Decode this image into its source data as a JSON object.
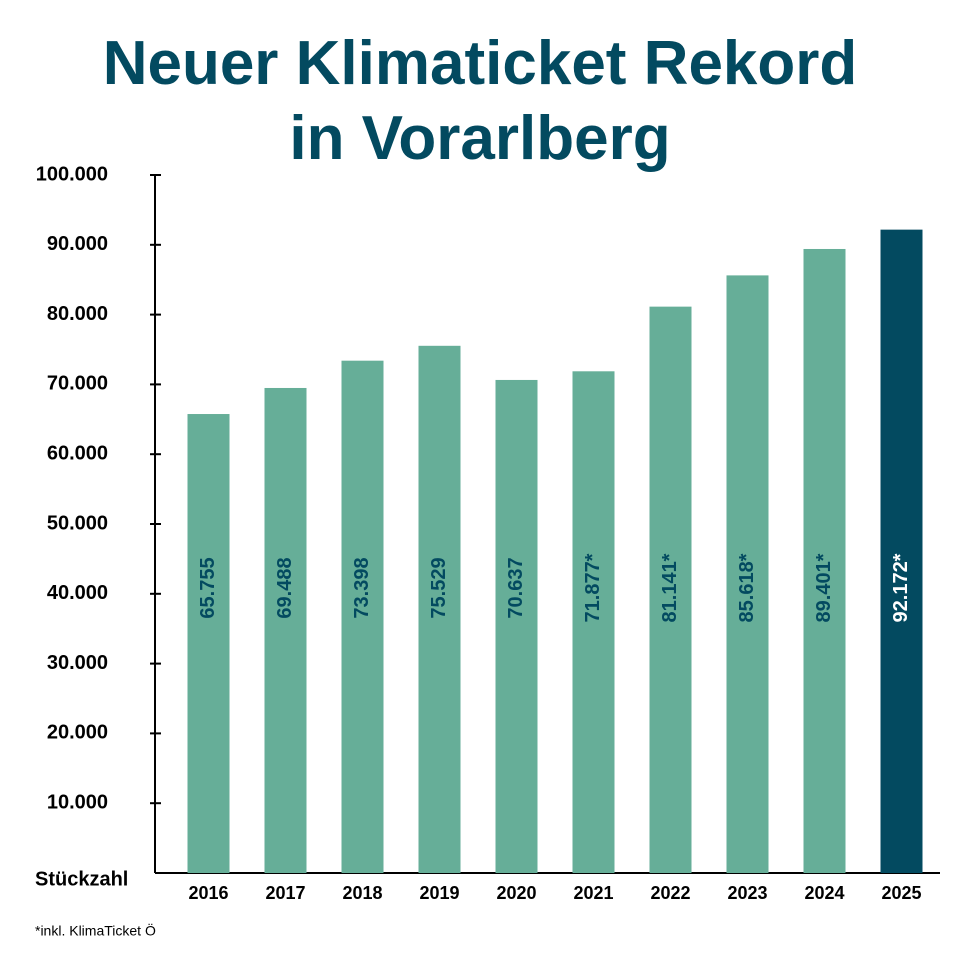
{
  "chart_data": {
    "type": "bar",
    "title": "Neuer Klimaticket Rekord in Vorarlberg",
    "y_label": "Stückzahl",
    "footnote": "*inkl. KlimaTicket Ö",
    "categories": [
      "2016",
      "2017",
      "2018",
      "2019",
      "2020",
      "2021",
      "2022",
      "2023",
      "2024",
      "2025"
    ],
    "values": [
      65755,
      69488,
      73398,
      75529,
      70637,
      71877,
      81141,
      85618,
      89401,
      92172
    ],
    "value_labels": [
      "65.755",
      "69.488",
      "73.398",
      "75.529",
      "70.637",
      "71.877*",
      "81.141*",
      "85.618*",
      "89.401*",
      "92.172*"
    ],
    "colors": [
      "#66ae98",
      "#66ae98",
      "#66ae98",
      "#66ae98",
      "#66ae98",
      "#66ae98",
      "#66ae98",
      "#66ae98",
      "#66ae98",
      "#034a60"
    ],
    "value_label_colors": [
      "#034a60",
      "#034a60",
      "#034a60",
      "#034a60",
      "#034a60",
      "#034a60",
      "#034a60",
      "#034a60",
      "#034a60",
      "#ffffff"
    ],
    "ylim": [
      0,
      100000
    ],
    "yticks": [
      {
        "value": 10000,
        "label": "10.000"
      },
      {
        "value": 20000,
        "label": "20.000"
      },
      {
        "value": 30000,
        "label": "30.000"
      },
      {
        "value": 40000,
        "label": "40.000"
      },
      {
        "value": 50000,
        "label": "50.000"
      },
      {
        "value": 60000,
        "label": "60.000"
      },
      {
        "value": 70000,
        "label": "70.000"
      },
      {
        "value": 80000,
        "label": "80.000"
      },
      {
        "value": 90000,
        "label": "90.000"
      },
      {
        "value": 100000,
        "label": "100.000"
      }
    ],
    "grid": false
  }
}
